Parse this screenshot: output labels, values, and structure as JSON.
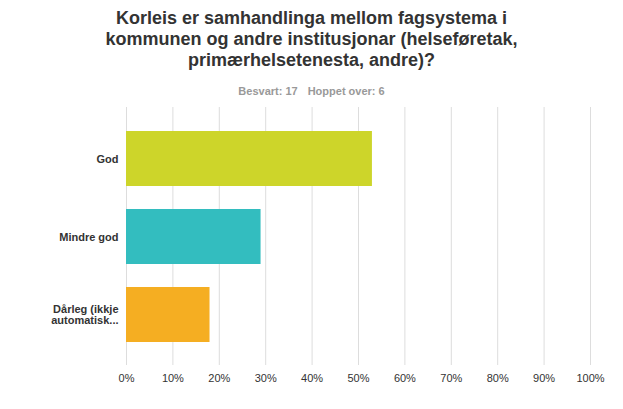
{
  "chart_data": {
    "type": "bar",
    "title": "Korleis er samhandlinga mellom fagsystema i kommunen og andre institusjonar (helseføretak, primærhelsetenesta, andre)?",
    "subtitle": [
      "Besvart: 17",
      "Hoppet over: 6"
    ],
    "orientation": "horizontal",
    "categories": [
      "God",
      "Mindre god",
      "Dårleg (ikkje automatisk..."
    ],
    "values": [
      53,
      29,
      18
    ],
    "colors": [
      "#cdd52a",
      "#33bdbf",
      "#f5ae22"
    ],
    "xlim": [
      0,
      100
    ],
    "xticks": [
      {
        "value": 0,
        "label": "0%"
      },
      {
        "value": 10,
        "label": "10%"
      },
      {
        "value": 20,
        "label": "20%"
      },
      {
        "value": 30,
        "label": "30%"
      },
      {
        "value": 40,
        "label": "40%"
      },
      {
        "value": 50,
        "label": "50%"
      },
      {
        "value": 60,
        "label": "60%"
      },
      {
        "value": 70,
        "label": "70%"
      },
      {
        "value": 80,
        "label": "80%"
      },
      {
        "value": 90,
        "label": "90%"
      },
      {
        "value": 100,
        "label": "100%"
      }
    ],
    "grid": true
  }
}
